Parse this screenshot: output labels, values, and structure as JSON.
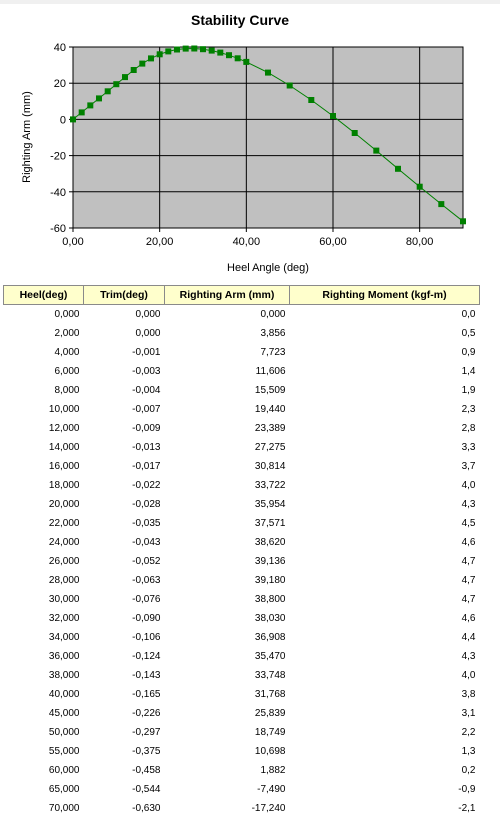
{
  "chart_data": {
    "type": "line",
    "title": "Stability Curve",
    "xlabel": "Heel Angle (deg)",
    "ylabel": "Righting Arm (mm)",
    "xlim": [
      0,
      90
    ],
    "ylim": [
      -60,
      40
    ],
    "xticks": [
      0,
      20,
      40,
      60,
      80
    ],
    "xtick_labels": [
      "0,00",
      "20,00",
      "40,00",
      "60,00",
      "80,00"
    ],
    "yticks": [
      40,
      20,
      0,
      -20,
      -40,
      -60
    ],
    "ytick_labels": [
      "40",
      "20",
      "0",
      "-20",
      "-40",
      "-60"
    ],
    "grid": true,
    "plot_bg": "#c0c0c0",
    "line_color": "#008000",
    "series": [
      {
        "x": [
          0,
          2,
          4,
          6,
          8,
          10,
          12,
          14,
          16,
          18,
          20,
          22,
          24,
          26,
          28,
          30,
          32,
          34,
          36,
          38,
          40,
          45,
          50,
          55,
          60,
          65,
          70,
          75,
          80,
          85,
          90
        ],
        "y": [
          0,
          3.856,
          7.723,
          11.606,
          15.509,
          19.44,
          23.389,
          27.275,
          30.814,
          33.722,
          35.954,
          37.571,
          38.62,
          39.136,
          39.18,
          38.8,
          38.03,
          36.908,
          35.47,
          33.748,
          31.768,
          25.839,
          18.749,
          10.698,
          1.882,
          -7.49,
          -17.24,
          -27.3,
          -37.2,
          -46.8,
          -56.3
        ]
      }
    ]
  },
  "table": {
    "headers": [
      "Heel(deg)",
      "Trim(deg)",
      "Righting Arm (mm)",
      "Righting Moment (kgf-m)"
    ],
    "rows": [
      [
        "0,000",
        "0,000",
        "0,000",
        "0,0"
      ],
      [
        "2,000",
        "0,000",
        "3,856",
        "0,5"
      ],
      [
        "4,000",
        "-0,001",
        "7,723",
        "0,9"
      ],
      [
        "6,000",
        "-0,003",
        "11,606",
        "1,4"
      ],
      [
        "8,000",
        "-0,004",
        "15,509",
        "1,9"
      ],
      [
        "10,000",
        "-0,007",
        "19,440",
        "2,3"
      ],
      [
        "12,000",
        "-0,009",
        "23,389",
        "2,8"
      ],
      [
        "14,000",
        "-0,013",
        "27,275",
        "3,3"
      ],
      [
        "16,000",
        "-0,017",
        "30,814",
        "3,7"
      ],
      [
        "18,000",
        "-0,022",
        "33,722",
        "4,0"
      ],
      [
        "20,000",
        "-0,028",
        "35,954",
        "4,3"
      ],
      [
        "22,000",
        "-0,035",
        "37,571",
        "4,5"
      ],
      [
        "24,000",
        "-0,043",
        "38,620",
        "4,6"
      ],
      [
        "26,000",
        "-0,052",
        "39,136",
        "4,7"
      ],
      [
        "28,000",
        "-0,063",
        "39,180",
        "4,7"
      ],
      [
        "30,000",
        "-0,076",
        "38,800",
        "4,7"
      ],
      [
        "32,000",
        "-0,090",
        "38,030",
        "4,6"
      ],
      [
        "34,000",
        "-0,106",
        "36,908",
        "4,4"
      ],
      [
        "36,000",
        "-0,124",
        "35,470",
        "4,3"
      ],
      [
        "38,000",
        "-0,143",
        "33,748",
        "4,0"
      ],
      [
        "40,000",
        "-0,165",
        "31,768",
        "3,8"
      ],
      [
        "45,000",
        "-0,226",
        "25,839",
        "3,1"
      ],
      [
        "50,000",
        "-0,297",
        "18,749",
        "2,2"
      ],
      [
        "55,000",
        "-0,375",
        "10,698",
        "1,3"
      ],
      [
        "60,000",
        "-0,458",
        "1,882",
        "0,2"
      ],
      [
        "65,000",
        "-0,544",
        "-7,490",
        "-0,9"
      ],
      [
        "70,000",
        "-0,630",
        "-17,240",
        "-2,1"
      ]
    ]
  }
}
